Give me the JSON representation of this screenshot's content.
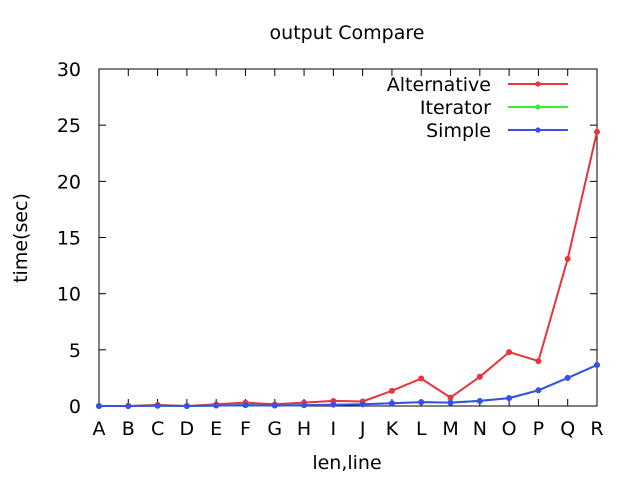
{
  "chart_data": {
    "type": "line",
    "title": "output Compare",
    "xlabel": "len,line",
    "ylabel": "time(sec)",
    "categories": [
      "A",
      "B",
      "C",
      "D",
      "E",
      "F",
      "G",
      "H",
      "I",
      "J",
      "K",
      "L",
      "M",
      "N",
      "O",
      "P",
      "Q",
      "R"
    ],
    "ylim": [
      0,
      30
    ],
    "yticks": [
      0,
      5,
      10,
      15,
      20,
      25,
      30
    ],
    "ytick_labels": [
      "0",
      "5",
      "10",
      "15",
      "20",
      "25",
      "30"
    ],
    "grid": false,
    "legend_position": "top-right",
    "series": [
      {
        "name": "Alternative",
        "color": "#e8343a",
        "values": [
          0.0,
          0.0,
          0.1,
          0.0,
          0.15,
          0.3,
          0.15,
          0.3,
          0.45,
          0.4,
          1.35,
          2.45,
          0.75,
          2.6,
          4.8,
          4.0,
          13.1,
          24.4
        ]
      },
      {
        "name": "Iterator",
        "color": "#3ee83e",
        "values": [
          0.0,
          0.0,
          0.02,
          0.0,
          0.04,
          0.08,
          0.04,
          0.08,
          0.12,
          0.15,
          0.25,
          0.35,
          0.3,
          0.45,
          0.7,
          1.4,
          2.5,
          3.65
        ]
      },
      {
        "name": "Simple",
        "color": "#3a4ee8",
        "values": [
          0.0,
          0.0,
          0.02,
          0.0,
          0.04,
          0.08,
          0.04,
          0.08,
          0.12,
          0.15,
          0.25,
          0.35,
          0.3,
          0.45,
          0.7,
          1.4,
          2.5,
          3.65
        ]
      }
    ]
  }
}
